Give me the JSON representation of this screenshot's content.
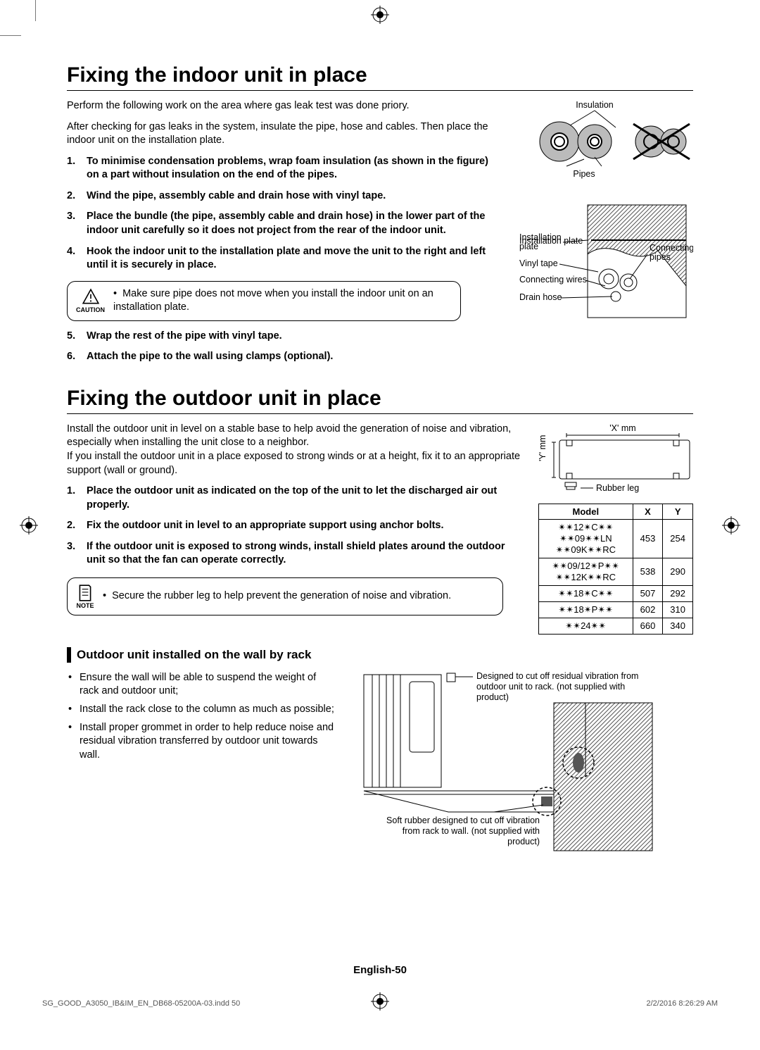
{
  "section1": {
    "title": "Fixing the indoor unit in place",
    "intro1": "Perform the following work on the area where gas leak test was done priory.",
    "intro2": "After checking for gas leaks in the system, insulate the pipe, hose and cables. Then place the indoor unit on the installation plate.",
    "steps_a": [
      "To minimise condensation problems, wrap foam insulation (as shown in the figure) on a part without insulation on the end of the pipes.",
      "Wind the pipe, assembly cable and drain hose with vinyl tape.",
      "Place the bundle (the pipe, assembly cable and drain hose) in the lower part of the indoor unit carefully so it does not project from the rear of the indoor unit.",
      "Hook the indoor unit to the installation plate and move the unit to the right and left until it is securely in place."
    ],
    "caution_label": "CAUTION",
    "caution_text": "Make sure pipe does not move when you install the indoor unit on an installation plate.",
    "steps_b": [
      "Wrap the rest of the pipe with vinyl tape.",
      "Attach the pipe to the wall using clamps (optional)."
    ],
    "fig1": {
      "insulation": "Insulation",
      "pipes": "Pipes"
    },
    "fig2": {
      "install_plate": "Installation plate",
      "vinyl_tape": "Vinyl tape",
      "conn_wires": "Connecting wires",
      "drain_hose": "Drain hose",
      "conn_pipes": "Connecting pipes"
    }
  },
  "section2": {
    "title": "Fixing the outdoor unit in place",
    "intro1": "Install the outdoor unit in level on a stable base to help avoid the generation of noise and vibration, especially when installing the unit close to a neighbor.",
    "intro2": "If you install the outdoor unit in a place exposed to strong winds or at a height, fix it to an appropriate support (wall or ground).",
    "steps": [
      "Place the outdoor unit as indicated on the top of the unit to let the discharged air out properly.",
      "Fix the outdoor unit in level to an appropriate support using anchor bolts.",
      "If the outdoor unit is exposed to strong winds, install shield plates around the outdoor unit so that the fan can operate correctly."
    ],
    "note_label": "NOTE",
    "note_text": "Secure the rubber leg to help prevent the generation of noise and vibration.",
    "diagram": {
      "x_label": "'X' mm",
      "y_label": "'Y' mm",
      "rubber_leg": "Rubber leg"
    },
    "table": {
      "headers": [
        "Model",
        "X",
        "Y"
      ],
      "rows": [
        [
          "✴✴12✴C✴✴\n✴✴09✴✴LN\n✴✴09K✴✴RC",
          "453",
          "254"
        ],
        [
          "✴✴09/12✴P✴✴\n✴✴12K✴✴RC",
          "538",
          "290"
        ],
        [
          "✴✴18✴C✴✴",
          "507",
          "292"
        ],
        [
          "✴✴18✴P✴✴",
          "602",
          "310"
        ],
        [
          "✴✴24✴✴",
          "660",
          "340"
        ]
      ]
    },
    "sub_heading": "Outdoor unit installed on the wall by rack",
    "wall_bullets": [
      "Ensure the wall will be able to suspend the weight of rack and outdoor unit;",
      "Install the rack close to the column as much as possible;",
      "Install proper grommet in order to help reduce noise and residual vibration transferred by outdoor unit towards wall."
    ],
    "wall_fig": {
      "top_note": "Designed to cut off residual vibration from outdoor unit to rack. (not supplied with product)",
      "bottom_note": "Soft rubber designed to cut off vibration from rack to wall. (not supplied with product)"
    }
  },
  "footer": {
    "page": "English-50",
    "file": "SG_GOOD_A3050_IB&IM_EN_DB68-05200A-03.indd   50",
    "date": "2/2/2016   8:26:29 AM"
  },
  "colors": {
    "text": "#000000",
    "footer_text": "#555555",
    "hatch": "#444444"
  }
}
